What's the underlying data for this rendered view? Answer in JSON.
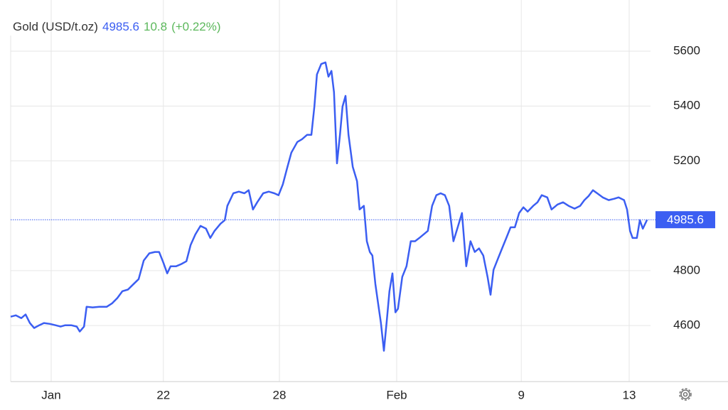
{
  "chart_data": {
    "type": "line",
    "title": "Gold (USD/t.oz)",
    "last_price": 4985.6,
    "change": 10.8,
    "change_percent": "(+0.22%)",
    "color": "#3b5ef2",
    "change_color": "#5cb85c",
    "grid": true,
    "x": [
      0,
      1.2,
      2.5,
      3.5,
      4.5,
      5.5,
      6.7,
      7.8,
      9.2,
      10.5,
      11.7,
      12.8,
      14.2,
      15.5,
      16.2,
      17.2,
      17.8,
      19.2,
      20.8,
      22.5,
      23.8,
      25,
      26.2,
      27.5,
      28.8,
      30,
      31.2,
      32.5,
      33.8,
      34.8,
      35.8,
      36.7,
      37.5,
      38.8,
      40,
      41.2,
      42.2,
      43.3,
      44.5,
      45.8,
      46.8,
      47.8,
      49.2,
      50.2,
      50.8,
      52.2,
      53.5,
      54.8,
      55.8,
      56.8,
      57.8,
      59.2,
      60.5,
      61.8,
      62.8,
      63.8,
      64.8,
      65.8,
      67.2,
      68.3,
      69.5,
      70.5,
      71.2,
      71.8,
      72.8,
      73.8,
      74.5,
      75.2,
      75.8,
      76.5,
      77.2,
      77.8,
      78.5,
      79.2,
      80.2,
      81.2,
      81.8,
      82.8,
      83.5,
      84.2,
      84.8,
      85.5,
      86.2,
      86.8,
      87.5,
      88.2,
      88.8,
      89.5,
      90.2,
      90.8,
      91.8,
      92.8,
      93.8,
      94.8,
      95.8,
      96.8,
      97.8,
      98.8,
      99.8,
      100.8,
      101.8,
      102.8,
      103.8,
      104.8,
      105.8,
      106.8,
      107.8,
      108.8,
      109.8,
      110.8,
      111.8,
      112.5,
      113.2,
      114.2,
      115.2,
      116.2,
      117.2,
      118.2,
      119.2,
      120.2,
      121.2,
      122.5,
      123.5,
      124.5,
      125.8,
      126.8,
      128.2,
      129.5,
      130.8,
      132.2,
      133.5,
      134.5,
      135.5,
      136.5,
      137.5,
      138.8,
      140.2,
      141.5,
      142.5,
      143.8,
      144.5,
      145.2,
      145.8,
      146.8,
      147.5,
      148.2,
      149.2
    ],
    "values": [
      4632,
      4637,
      4627,
      4640,
      4609,
      4591,
      4601,
      4609,
      4606,
      4601,
      4596,
      4601,
      4601,
      4596,
      4578,
      4596,
      4668,
      4666,
      4668,
      4668,
      4681,
      4700,
      4725,
      4731,
      4751,
      4769,
      4837,
      4863,
      4868,
      4868,
      4829,
      4790,
      4816,
      4816,
      4824,
      4834,
      4894,
      4932,
      4963,
      4953,
      4919,
      4945,
      4971,
      4984,
      5036,
      5082,
      5088,
      5082,
      5093,
      5023,
      5049,
      5082,
      5088,
      5082,
      5075,
      5114,
      5173,
      5230,
      5269,
      5279,
      5295,
      5295,
      5398,
      5515,
      5553,
      5559,
      5507,
      5528,
      5450,
      5191,
      5295,
      5398,
      5437,
      5295,
      5178,
      5126,
      5023,
      5036,
      4907,
      4868,
      4855,
      4751,
      4674,
      4609,
      4508,
      4622,
      4725,
      4790,
      4648,
      4661,
      4777,
      4816,
      4907,
      4907,
      4919,
      4932,
      4945,
      5036,
      5075,
      5082,
      5075,
      5036,
      4907,
      4958,
      5010,
      4816,
      4907,
      4868,
      4881,
      4855,
      4777,
      4712,
      4803,
      4842,
      4881,
      4919,
      4958,
      4958,
      5010,
      5031,
      5015,
      5036,
      5049,
      5075,
      5067,
      5023,
      5041,
      5049,
      5036,
      5026,
      5036,
      5057,
      5072,
      5093,
      5082,
      5067,
      5057,
      5062,
      5067,
      5057,
      5023,
      4945,
      4919,
      4919,
      4984,
      4953,
      4985.6
    ],
    "xlim": [
      0,
      150
    ],
    "xticks": [
      {
        "value": 9.5,
        "label": "Jan"
      },
      {
        "value": 35.8,
        "label": "22"
      },
      {
        "value": 63,
        "label": "28"
      },
      {
        "value": 90.5,
        "label": "Feb"
      },
      {
        "value": 119.7,
        "label": "9"
      },
      {
        "value": 145,
        "label": "13"
      }
    ],
    "ylim": [
      4400,
      5660
    ],
    "yticks": [
      4600,
      4800,
      5200,
      5400,
      5600
    ]
  }
}
